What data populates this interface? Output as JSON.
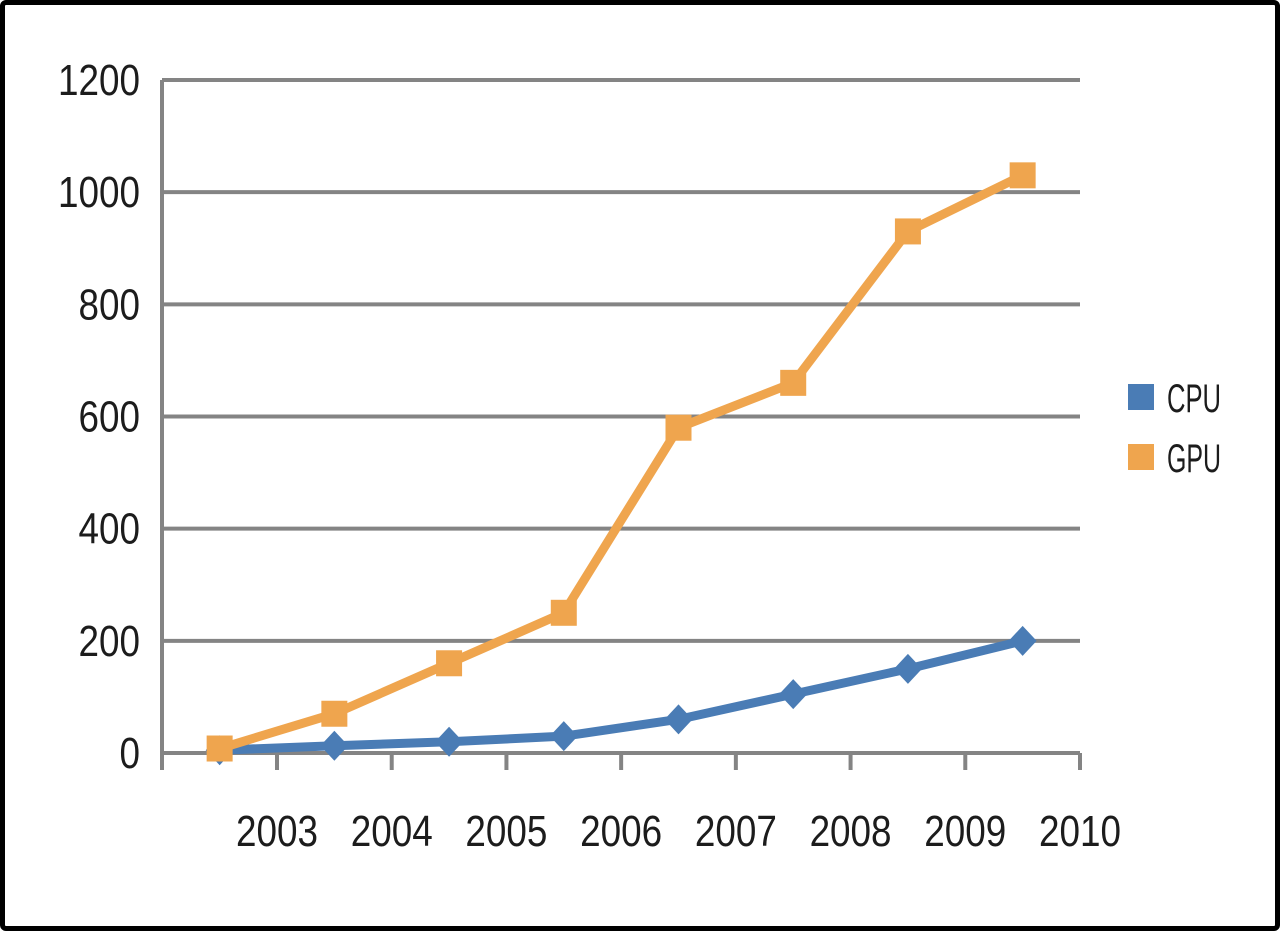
{
  "figure": {
    "background_color": "#ffffff",
    "border_color": "#000000"
  },
  "chart_data": {
    "type": "line",
    "title": "",
    "xlabel": "",
    "ylabel": "",
    "grid": "horizontal",
    "grid_color": "#848484",
    "ylim": [
      0,
      1200
    ],
    "y_ticks": [
      0,
      200,
      400,
      600,
      800,
      1000,
      1200
    ],
    "y_tick_labels": [
      "0",
      "200",
      "400",
      "600",
      "800",
      "1000",
      "1200"
    ],
    "x_ticks": [
      2003,
      2004,
      2005,
      2006,
      2007,
      2008,
      2009,
      2010
    ],
    "x_tick_labels": [
      "2003",
      "2004",
      "2005",
      "2006",
      "2007",
      "2008",
      "2009",
      "2010"
    ],
    "legend_position": "right",
    "legend": [
      {
        "label": "CPU",
        "swatch_color": "#4A7CB5"
      },
      {
        "label": "GPU",
        "swatch_color": "#EFA54E"
      }
    ],
    "series": [
      {
        "name": "CPU",
        "color": "#4A7CB5",
        "marker": "diamond",
        "x": [
          2002.5,
          2003.5,
          2004.5,
          2005.5,
          2006.5,
          2007.5,
          2008.5,
          2009.5
        ],
        "values": [
          5,
          13,
          20,
          30,
          60,
          105,
          150,
          200
        ]
      },
      {
        "name": "GPU",
        "color": "#EFA54E",
        "marker": "square",
        "x": [
          2002.5,
          2003.5,
          2004.5,
          2005.5,
          2006.5,
          2007.5,
          2008.5,
          2009.5
        ],
        "values": [
          8,
          70,
          160,
          250,
          580,
          660,
          930,
          1030
        ]
      }
    ]
  }
}
